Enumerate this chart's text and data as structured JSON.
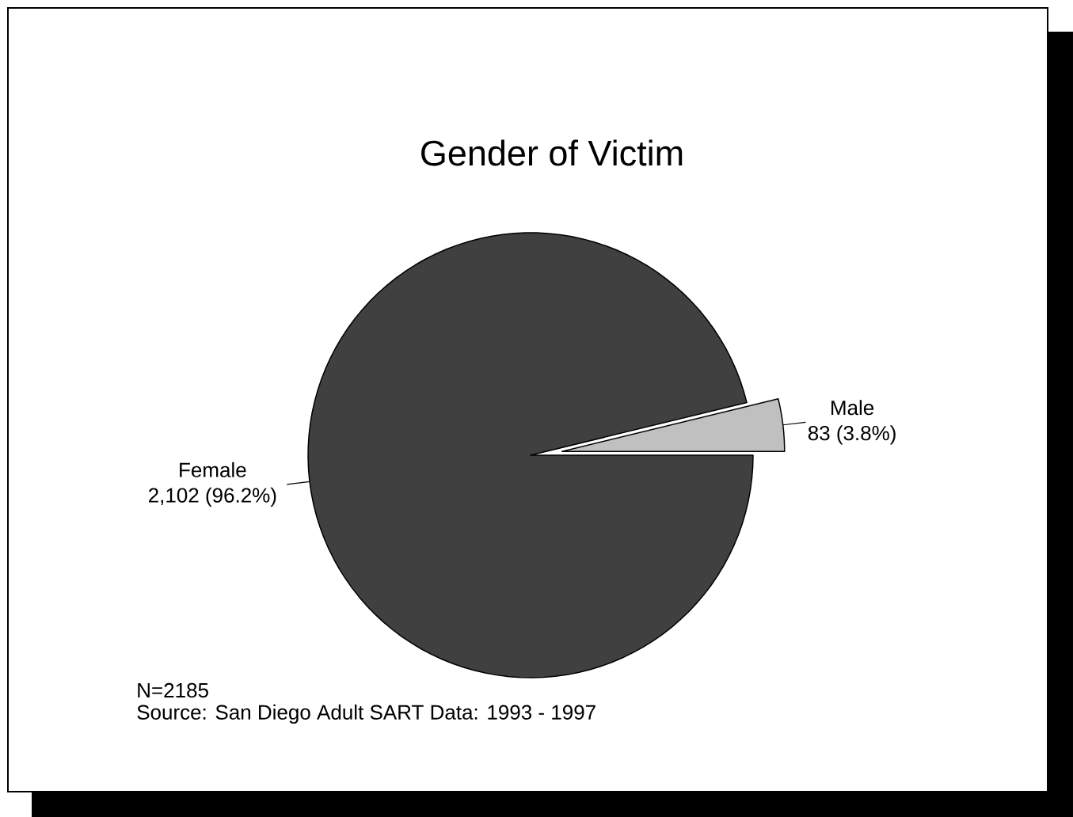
{
  "chart_data": {
    "type": "pie",
    "title": "Gender of Victim",
    "categories": [
      "Female",
      "Male"
    ],
    "values": [
      2102,
      83
    ],
    "colors": [
      "#404040",
      "#c0c0c0"
    ],
    "value_labels": [
      "2,102  (96.2%)",
      "83  (3.8%)"
    ],
    "annotations": [
      "N=2185",
      "Source: San Diego Adult SART Data: 1993 - 1997"
    ]
  }
}
